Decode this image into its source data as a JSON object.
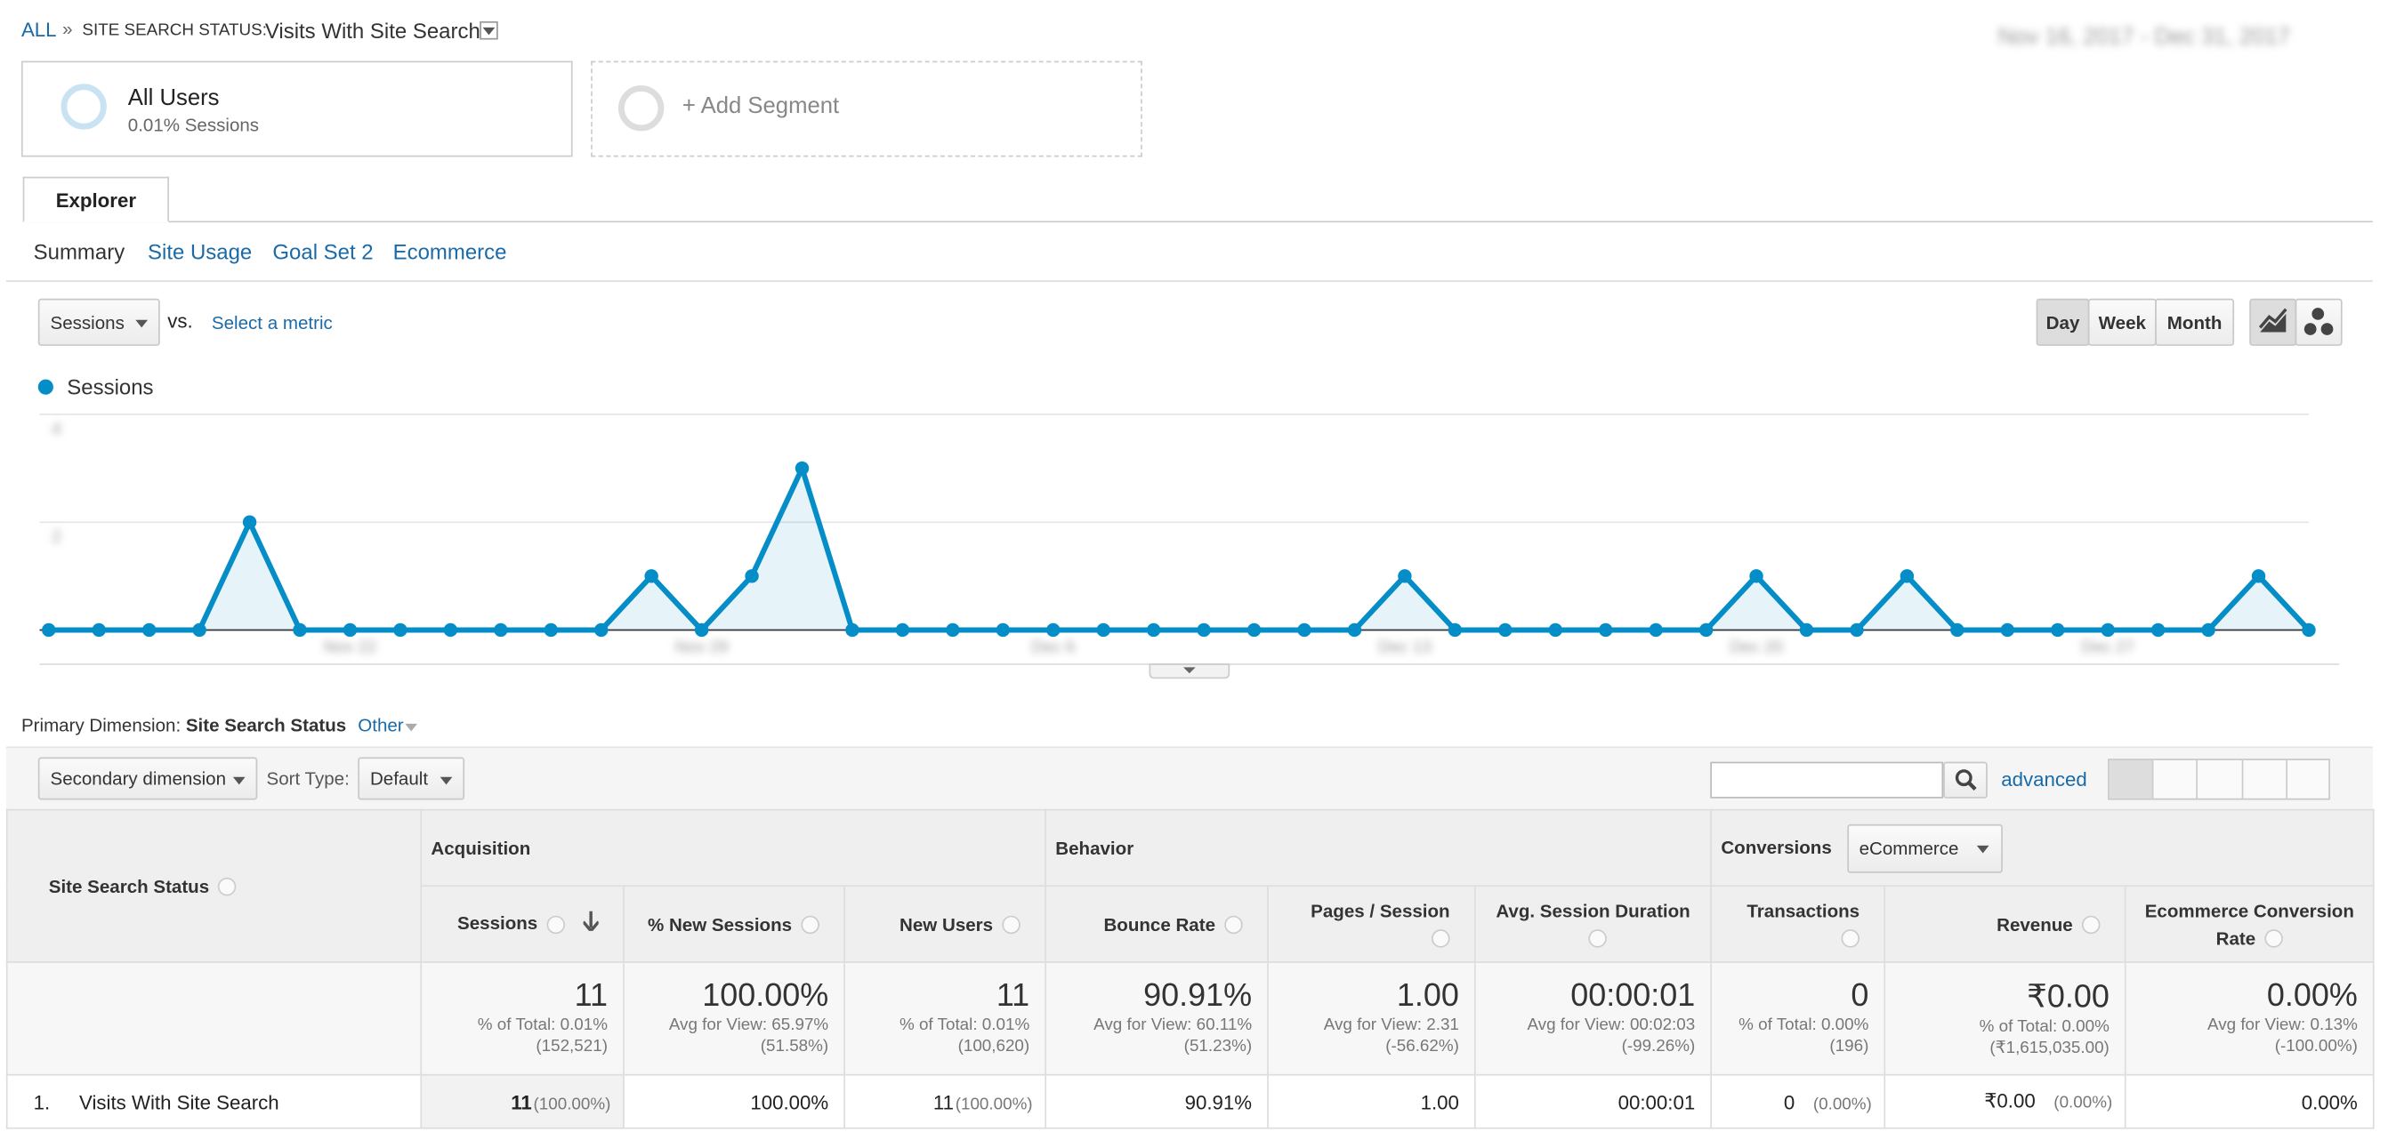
{
  "breadcrumb": {
    "root": "ALL",
    "separator": "»",
    "label": "SITE SEARCH STATUS:",
    "value": "Visits With Site Search"
  },
  "date_range": "Nov 16, 2017 - Dec 31, 2017",
  "segments": [
    {
      "name": "All Users",
      "detail": "0.01% Sessions"
    },
    {
      "name": "+ Add Segment"
    }
  ],
  "tab": "Explorer",
  "subtabs": [
    "Summary",
    "Site Usage",
    "Goal Set 2",
    "Ecommerce"
  ],
  "metric_selector": {
    "metric": "Sessions",
    "vs": "vs.",
    "select": "Select a metric"
  },
  "period_buttons": [
    "Day",
    "Week",
    "Month"
  ],
  "chart_data": {
    "type": "line",
    "categories": [
      null,
      null,
      null,
      null,
      null,
      null,
      "Nov 22",
      null,
      null,
      null,
      null,
      null,
      null,
      "Nov 29",
      null,
      null,
      null,
      null,
      null,
      null,
      "Dec 6",
      null,
      null,
      null,
      null,
      null,
      null,
      "Dec 13",
      null,
      null,
      null,
      null,
      null,
      null,
      "Dec 20",
      null,
      null,
      null,
      null,
      null,
      null,
      "Dec 27",
      null,
      null,
      null,
      null
    ],
    "series": [
      {
        "name": "Sessions",
        "color": "#058dc7",
        "values": [
          0,
          0,
          0,
          0,
          2,
          0,
          0,
          0,
          0,
          0,
          0,
          0,
          1,
          0,
          1,
          3,
          0,
          0,
          0,
          0,
          0,
          0,
          0,
          0,
          0,
          0,
          0,
          1,
          0,
          0,
          0,
          0,
          0,
          0,
          1,
          0,
          0,
          1,
          0,
          0,
          0,
          0,
          0,
          0,
          1,
          0
        ]
      }
    ],
    "ylim": [
      0,
      4
    ],
    "yticks": [
      2,
      4
    ],
    "grid": true,
    "legend": "top-left"
  },
  "primary_dimension": {
    "label": "Primary Dimension:",
    "value": "Site Search Status",
    "other": "Other"
  },
  "controls": {
    "secondary": "Secondary dimension",
    "sort_label": "Sort Type:",
    "sort": "Default",
    "advanced": "advanced"
  },
  "table": {
    "dimension_header": "Site Search Status",
    "groups": [
      "Acquisition",
      "Behavior",
      "Conversions"
    ],
    "conversion_select": "eCommerce",
    "columns": [
      "Sessions",
      "% New Sessions",
      "New Users",
      "Bounce Rate",
      "Pages / Session",
      "Avg. Session Duration",
      "Transactions",
      "Revenue",
      "Ecommerce Conversion Rate"
    ],
    "totals": [
      {
        "value": "11",
        "note": "% of Total: 0.01%",
        "base": "(152,521)"
      },
      {
        "value": "100.00%",
        "note": "Avg for View: 65.97%",
        "base": "(51.58%)"
      },
      {
        "value": "11",
        "note": "% of Total: 0.01%",
        "base": "(100,620)"
      },
      {
        "value": "90.91%",
        "note": "Avg for View: 60.11%",
        "base": "(51.23%)"
      },
      {
        "value": "1.00",
        "note": "Avg for View: 2.31",
        "base": "(-56.62%)"
      },
      {
        "value": "00:00:01",
        "note": "Avg for View: 00:02:03",
        "base": "(-99.26%)"
      },
      {
        "value": "0",
        "note": "% of Total: 0.00%",
        "base": "(196)"
      },
      {
        "value": "₹0.00",
        "note": "% of Total: 0.00%",
        "base": "(₹1,615,035.00)"
      },
      {
        "value": "0.00%",
        "note": "Avg for View: 0.13%",
        "base": "(-100.00%)"
      }
    ],
    "rows": [
      {
        "index": "1.",
        "name": "Visits With Site Search",
        "cells": [
          {
            "value": "11",
            "share": "(100.00%)"
          },
          {
            "value": "100.00%"
          },
          {
            "value": "11",
            "share": "(100.00%)"
          },
          {
            "value": "90.91%"
          },
          {
            "value": "1.00"
          },
          {
            "value": "00:00:01"
          },
          {
            "value": "0",
            "share": "(0.00%)"
          },
          {
            "value": "₹0.00",
            "share": "(0.00%)"
          },
          {
            "value": "0.00%"
          }
        ]
      }
    ]
  }
}
